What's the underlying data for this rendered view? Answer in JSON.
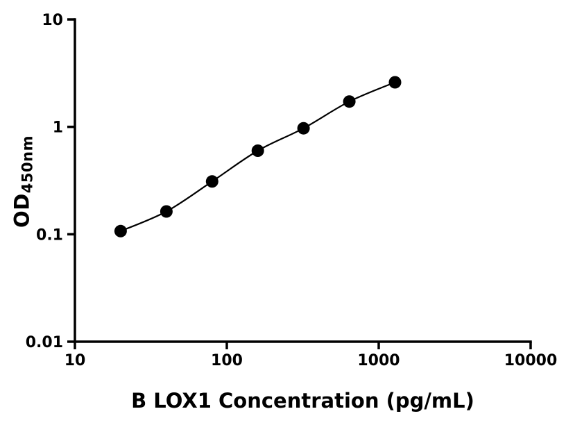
{
  "chart_data": {
    "type": "scatter",
    "title": "",
    "xlabel": "B LOX1 Concentration (pg/mL)",
    "ylabel_main": "OD",
    "ylabel_sub": "450nm",
    "xscale": "log",
    "yscale": "log",
    "xlim": [
      10,
      10000
    ],
    "ylim": [
      0.01,
      10
    ],
    "x": [
      20,
      40,
      80,
      160,
      320,
      640,
      1280
    ],
    "y": [
      0.107,
      0.163,
      0.31,
      0.6,
      0.97,
      1.72,
      2.6
    ],
    "x_ticks": [
      10,
      100,
      1000,
      10000
    ],
    "x_tick_labels": [
      "10",
      "100",
      "1000",
      "10000"
    ],
    "y_ticks": [
      0.01,
      0.1,
      1,
      10
    ],
    "y_tick_labels": [
      "0.01",
      "0.1",
      "1",
      "10"
    ],
    "grid": false,
    "legend": "none",
    "line_color": "#000000",
    "marker_color": "#000000",
    "marker_size": 9,
    "axis_color": "#000000",
    "background": "#ffffff"
  }
}
